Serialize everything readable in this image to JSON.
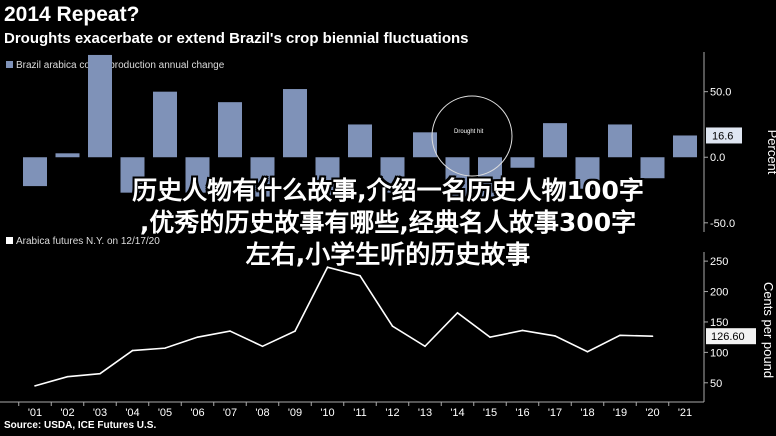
{
  "title": "2014 Repeat?",
  "subtitle": "Droughts exacerbate or extend Brazil's crop biennial fluctuations",
  "source": "Source: USDA, ICE Futures U.S.",
  "overlay_lines": [
    "历史人物有什么故事,介绍一名历史人物100字",
    ",优秀的历史故事有哪些,经典名人故事300字",
    "左右,小学生听的历史故事"
  ],
  "colors": {
    "bar": "#7f92b8",
    "line": "#ffffff",
    "grid": "#555555",
    "background": "#000000"
  },
  "chart_data": [
    {
      "type": "bar",
      "legend": "Brazil arabica coffee production annual change",
      "ylabel": "Percent",
      "categories": [
        "'01",
        "'02",
        "'03",
        "'04",
        "'05",
        "'06",
        "'07",
        "'08",
        "'09",
        "'10",
        "'11",
        "'12",
        "'13",
        "'14",
        "'15",
        "'16",
        "'17",
        "'18",
        "'19",
        "'20",
        "'21"
      ],
      "values": [
        -22,
        3,
        78,
        -27,
        50,
        -27,
        42,
        -30,
        52,
        -30,
        25,
        -27,
        19,
        -30,
        -30,
        -8,
        26,
        -24,
        25,
        -16,
        16.6
      ],
      "ylim": [
        -57,
        65
      ],
      "yticks": [
        50.0,
        0.0,
        -50.0
      ],
      "ytick_labels": [
        "50.0",
        "0.0",
        "-50.0"
      ],
      "last_value_label": "16.6",
      "annotation": "Drought hit",
      "legend_position": "top-left",
      "grid": false
    },
    {
      "type": "line",
      "legend": "Arabica futures N.Y. on 12/17/20",
      "ylabel": "Cents per pound",
      "categories": [
        "'01",
        "'02",
        "'03",
        "'04",
        "'05",
        "'06",
        "'07",
        "'08",
        "'09",
        "'10",
        "'11",
        "'12",
        "'13",
        "'14",
        "'15",
        "'16",
        "'17",
        "'18",
        "'19",
        "'20",
        "'21"
      ],
      "values": [
        45,
        60,
        65,
        103,
        107,
        125,
        135,
        110,
        135,
        240,
        226,
        143,
        110,
        165,
        125,
        136,
        127,
        101,
        128,
        126.6,
        null
      ],
      "ylim": [
        25,
        265
      ],
      "yticks": [
        250,
        200,
        150,
        100,
        50
      ],
      "ytick_labels": [
        "250",
        "200",
        "150",
        "100",
        "50"
      ],
      "last_value_label": "126.60",
      "legend_position": "top-left",
      "grid": false
    }
  ]
}
